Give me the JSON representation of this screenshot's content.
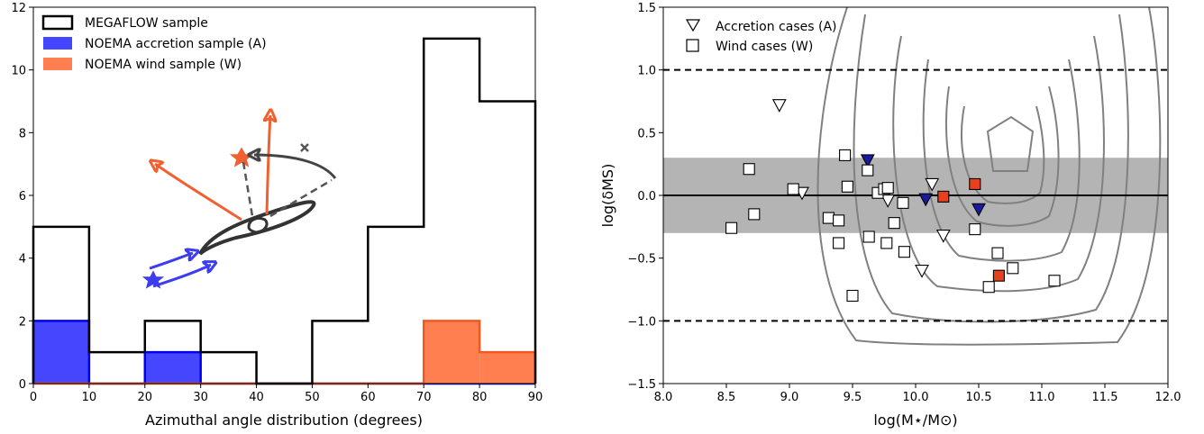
{
  "chart_data": [
    {
      "type": "bar",
      "title": "",
      "xlabel": "Azimuthal angle distribution (degrees)",
      "ylabel": "",
      "xlim": [
        0,
        90
      ],
      "ylim": [
        0,
        12
      ],
      "xticks": [
        "0",
        "10",
        "20",
        "30",
        "40",
        "50",
        "60",
        "70",
        "80",
        "90"
      ],
      "yticks": [
        "0",
        "2",
        "4",
        "6",
        "8",
        "10",
        "12"
      ],
      "bin_edges": [
        0,
        10,
        20,
        30,
        40,
        50,
        60,
        70,
        80,
        90
      ],
      "legend_position": "top-left",
      "series": [
        {
          "name": "MEGAFLOW sample",
          "style": "step",
          "color": "#000000",
          "values": [
            5,
            1,
            2,
            1,
            0,
            2,
            5,
            11,
            9
          ]
        },
        {
          "name": "NOEMA accretion sample (A)",
          "style": "filled",
          "color": "#4646ff",
          "edge_color": "#0000ee",
          "values": [
            2,
            0,
            1,
            0,
            0,
            0,
            0,
            0,
            0
          ]
        },
        {
          "name": "NOEMA wind sample (W)",
          "style": "filled",
          "color": "#ff7f50",
          "edge_color": "#f05a20",
          "values": [
            0,
            0,
            0,
            0,
            0,
            0,
            0,
            2,
            1
          ]
        }
      ]
    },
    {
      "type": "scatter",
      "title": "",
      "xlabel": "log(M⋆/M⊙)",
      "ylabel": "log(δMS)",
      "xlim": [
        8.0,
        12.0
      ],
      "ylim": [
        -1.5,
        1.5
      ],
      "xticks": [
        "8.0",
        "8.5",
        "9.0",
        "9.5",
        "10.0",
        "10.5",
        "11.0",
        "11.5",
        "12.0"
      ],
      "yticks": [
        "−1.5",
        "−1.0",
        "−0.5",
        "0.0",
        "0.5",
        "1.0",
        "1.5"
      ],
      "legend_position": "top-left",
      "main_sequence_band": [
        -0.3,
        0.3
      ],
      "reference_line": 0.0,
      "dashed_lines": [
        -1.0,
        1.0
      ],
      "series": [
        {
          "name": "Accretion cases (A)",
          "marker": "triangle-down",
          "points": [
            [
              8.92,
              0.72
            ],
            [
              9.1,
              0.02
            ],
            [
              9.78,
              -0.04
            ],
            [
              10.13,
              0.09
            ],
            [
              10.22,
              -0.32
            ],
            [
              10.05,
              -0.6
            ]
          ]
        },
        {
          "name": "",
          "marker": "triangle-down-filled",
          "color": "#1a1aa0",
          "points": [
            [
              9.62,
              0.28
            ],
            [
              10.08,
              -0.03
            ],
            [
              10.5,
              -0.11
            ]
          ]
        },
        {
          "name": "Wind cases (W)",
          "marker": "square",
          "points": [
            [
              8.68,
              0.21
            ],
            [
              8.72,
              -0.15
            ],
            [
              8.54,
              -0.26
            ],
            [
              9.03,
              0.05
            ],
            [
              9.31,
              -0.18
            ],
            [
              9.39,
              -0.2
            ],
            [
              9.39,
              -0.38
            ],
            [
              9.44,
              0.32
            ],
            [
              9.46,
              0.07
            ],
            [
              9.5,
              -0.8
            ],
            [
              9.62,
              0.2
            ],
            [
              9.63,
              -0.33
            ],
            [
              9.7,
              0.02
            ],
            [
              9.75,
              0.05
            ],
            [
              9.78,
              0.06
            ],
            [
              9.77,
              -0.38
            ],
            [
              9.83,
              -0.22
            ],
            [
              9.9,
              -0.06
            ],
            [
              9.91,
              -0.45
            ],
            [
              10.47,
              -0.27
            ],
            [
              10.58,
              -0.73
            ],
            [
              10.65,
              -0.46
            ],
            [
              10.77,
              -0.58
            ],
            [
              11.1,
              -0.68
            ]
          ]
        },
        {
          "name": "",
          "marker": "square-filled",
          "color": "#e8401c",
          "points": [
            [
              10.22,
              -0.01
            ],
            [
              10.47,
              0.09
            ],
            [
              10.66,
              -0.64
            ]
          ]
        }
      ]
    }
  ]
}
